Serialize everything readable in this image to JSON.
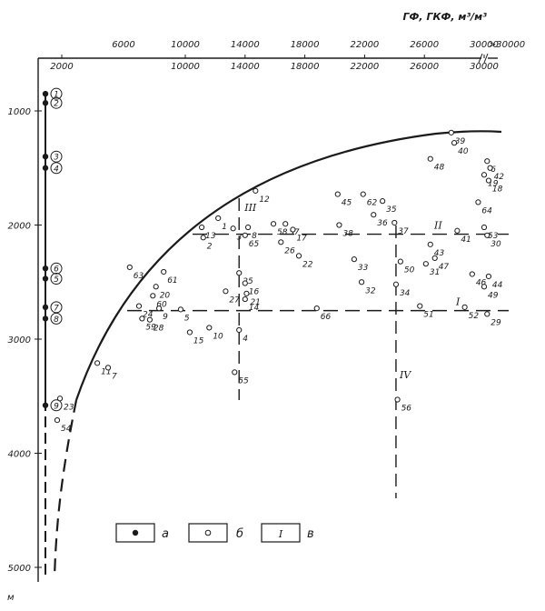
{
  "chart_data": {
    "type": "scatter",
    "title": "",
    "xlabel": "ГФ, ГКФ, м³/м³",
    "ylabel": "м",
    "x_ticks_bottom": [
      "2000",
      "10000",
      "14000",
      "18000",
      "22000",
      "26000",
      "30000"
    ],
    "x_ticks_top": [
      "6000",
      "10000",
      "14000",
      "18000",
      "22000",
      "26000",
      "30000",
      ">30000"
    ],
    "y_ticks": [
      "1000",
      "2000",
      "3000",
      "4000",
      "5000"
    ],
    "ylim": [
      600,
      5100
    ],
    "series": [
      {
        "legend_key": "а",
        "marker": "filled",
        "points": [
          {
            "label": "1",
            "y": 850
          },
          {
            "label": "2",
            "y": 930
          },
          {
            "label": "3",
            "y": 1400
          },
          {
            "label": "4",
            "y": 1500
          },
          {
            "label": "6",
            "y": 2380
          },
          {
            "label": "5",
            "y": 2470
          },
          {
            "label": "7",
            "y": 2720
          },
          {
            "label": "8",
            "y": 2820
          },
          {
            "label": "9",
            "y": 3580
          }
        ]
      },
      {
        "legend_key": "б",
        "marker": "open",
        "points": [
          {
            "label": "39",
            "x": 27800,
            "y": 1190
          },
          {
            "label": "40",
            "x": 28000,
            "y": 1280
          },
          {
            "label": "48",
            "x": 26400,
            "y": 1420
          },
          {
            "label": "6",
            "x": 30200,
            "y": 1440
          },
          {
            "label": "42",
            "x": 30400,
            "y": 1500
          },
          {
            "label": "19",
            "x": 30000,
            "y": 1560
          },
          {
            "label": "18",
            "x": 30300,
            "y": 1610
          },
          {
            "label": "64",
            "x": 29600,
            "y": 1800
          },
          {
            "label": "12",
            "x": 14700,
            "y": 1700
          },
          {
            "label": "45",
            "x": 20200,
            "y": 1730
          },
          {
            "label": "62",
            "x": 21900,
            "y": 1730
          },
          {
            "label": "35",
            "x": 23200,
            "y": 1790
          },
          {
            "label": "36",
            "x": 22600,
            "y": 1910
          },
          {
            "label": "1",
            "x": 12200,
            "y": 1940
          },
          {
            "label": "3",
            "x": 13200,
            "y": 2030
          },
          {
            "label": "8",
            "x": 14200,
            "y": 2020
          },
          {
            "label": "58",
            "x": 15900,
            "y": 1990
          },
          {
            "label": "57",
            "x": 16700,
            "y": 1990
          },
          {
            "label": "17",
            "x": 17200,
            "y": 2040
          },
          {
            "label": "13",
            "x": 11100,
            "y": 2020
          },
          {
            "label": "38",
            "x": 20300,
            "y": 2000
          },
          {
            "label": "37",
            "x": 24000,
            "y": 1980
          },
          {
            "label": "53",
            "x": 30000,
            "y": 2020
          },
          {
            "label": "2",
            "x": 11200,
            "y": 2110
          },
          {
            "label": "65",
            "x": 14000,
            "y": 2090
          },
          {
            "label": "26",
            "x": 16400,
            "y": 2150
          },
          {
            "label": "22",
            "x": 17600,
            "y": 2270
          },
          {
            "label": "30",
            "x": 30200,
            "y": 2090
          },
          {
            "label": "41",
            "x": 28200,
            "y": 2050
          },
          {
            "label": "43",
            "x": 26400,
            "y": 2170
          },
          {
            "label": "47",
            "x": 26700,
            "y": 2290
          },
          {
            "label": "33",
            "x": 21300,
            "y": 2300
          },
          {
            "label": "50",
            "x": 24400,
            "y": 2320
          },
          {
            "label": "31",
            "x": 26100,
            "y": 2340
          },
          {
            "label": "32",
            "x": 21800,
            "y": 2500
          },
          {
            "label": "34",
            "x": 24100,
            "y": 2520
          },
          {
            "label": "46",
            "x": 29200,
            "y": 2430
          },
          {
            "label": "44",
            "x": 30300,
            "y": 2450
          },
          {
            "label": "49",
            "x": 30000,
            "y": 2540
          },
          {
            "label": "63",
            "x": 6400,
            "y": 2370
          },
          {
            "label": "61",
            "x": 8600,
            "y": 2410
          },
          {
            "label": "25",
            "x": 13600,
            "y": 2420
          },
          {
            "label": "16",
            "x": 14000,
            "y": 2510
          },
          {
            "label": "21",
            "x": 14100,
            "y": 2600
          },
          {
            "label": "20",
            "x": 8100,
            "y": 2540
          },
          {
            "label": "27",
            "x": 12700,
            "y": 2580
          },
          {
            "label": "60",
            "x": 7900,
            "y": 2620
          },
          {
            "label": "14",
            "x": 14000,
            "y": 2650
          },
          {
            "label": "24",
            "x": 7000,
            "y": 2710
          },
          {
            "label": "9",
            "x": 8300,
            "y": 2730
          },
          {
            "label": "5",
            "x": 9700,
            "y": 2740
          },
          {
            "label": "66",
            "x": 18800,
            "y": 2730
          },
          {
            "label": "51",
            "x": 25700,
            "y": 2710
          },
          {
            "label": "52",
            "x": 28700,
            "y": 2720
          },
          {
            "label": "29",
            "x": 30200,
            "y": 2780
          },
          {
            "label": "59",
            "x": 7200,
            "y": 2820
          },
          {
            "label": "28",
            "x": 7700,
            "y": 2830
          },
          {
            "label": "15",
            "x": 10300,
            "y": 2940
          },
          {
            "label": "10",
            "x": 11600,
            "y": 2900
          },
          {
            "label": "4",
            "x": 13600,
            "y": 2920
          },
          {
            "label": "11",
            "x": 4300,
            "y": 3210
          },
          {
            "label": "7",
            "x": 5000,
            "y": 3250
          },
          {
            "label": "55",
            "x": 13300,
            "y": 3290
          },
          {
            "label": "23",
            "x": 1800,
            "y": 3520
          },
          {
            "label": "56",
            "x": 24200,
            "y": 3530
          },
          {
            "label": "54",
            "x": 1500,
            "y": 3710
          }
        ]
      }
    ],
    "boundary_lines": [
      {
        "label": "I",
        "orientation": "horizontal",
        "y": 2750
      },
      {
        "label": "II",
        "orientation": "horizontal",
        "y": 2080
      },
      {
        "label": "III",
        "orientation": "vertical",
        "x": 13600
      },
      {
        "label": "IV",
        "orientation": "vertical",
        "x": 24100
      }
    ],
    "legend": [
      {
        "key": "а",
        "symbol": "filled-circle"
      },
      {
        "key": "б",
        "symbol": "open-circle"
      },
      {
        "key": "в",
        "symbol": "roman-numeral",
        "text": "I"
      }
    ],
    "grid": false
  }
}
